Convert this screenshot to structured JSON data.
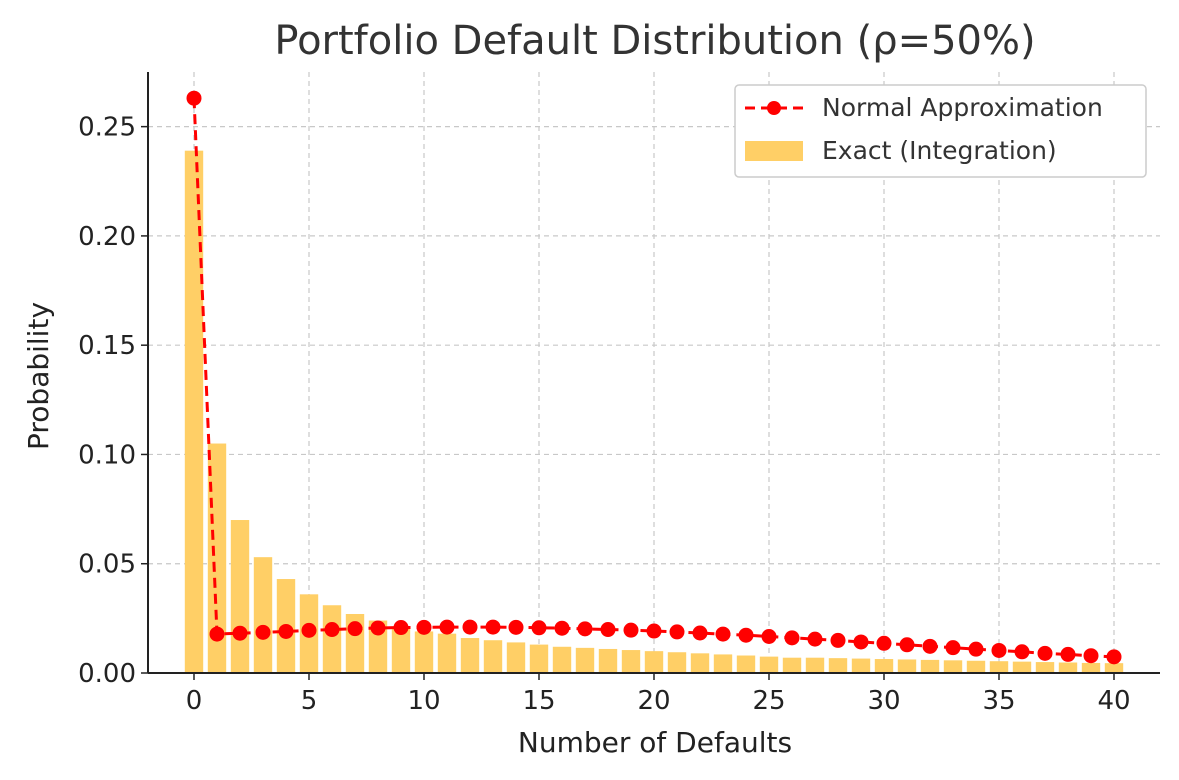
{
  "chart_data": {
    "type": "bar",
    "title": "Portfolio Default Distribution (ρ=50%)",
    "xlabel": "Number of Defaults",
    "ylabel": "Probability",
    "xlim": [
      -2,
      42
    ],
    "ylim": [
      0,
      0.275
    ],
    "x_ticks": [
      0,
      5,
      10,
      15,
      20,
      25,
      30,
      35,
      40
    ],
    "y_ticks": [
      0.0,
      0.05,
      0.1,
      0.15,
      0.2,
      0.25
    ],
    "y_tick_labels": [
      "0.00",
      "0.05",
      "0.10",
      "0.15",
      "0.20",
      "0.25"
    ],
    "grid": true,
    "legend_position": "top-right",
    "x": [
      0,
      1,
      2,
      3,
      4,
      5,
      6,
      7,
      8,
      9,
      10,
      11,
      12,
      13,
      14,
      15,
      16,
      17,
      18,
      19,
      20,
      21,
      22,
      23,
      24,
      25,
      26,
      27,
      28,
      29,
      30,
      31,
      32,
      33,
      34,
      35,
      36,
      37,
      38,
      39,
      40
    ],
    "series": [
      {
        "name": "Exact (Integration)",
        "kind": "bar",
        "color": "#FFCF66",
        "values": [
          0.239,
          0.105,
          0.07,
          0.053,
          0.043,
          0.036,
          0.031,
          0.027,
          0.024,
          0.021,
          0.019,
          0.018,
          0.016,
          0.015,
          0.014,
          0.013,
          0.012,
          0.0115,
          0.011,
          0.0105,
          0.01,
          0.0095,
          0.009,
          0.0085,
          0.008,
          0.0075,
          0.007,
          0.007,
          0.0068,
          0.0066,
          0.0064,
          0.0062,
          0.006,
          0.0058,
          0.0056,
          0.0054,
          0.0052,
          0.005,
          0.0048,
          0.0046,
          0.0045
        ]
      },
      {
        "name": "Normal Approximation",
        "kind": "line",
        "color": "#FF0000",
        "values": [
          0.263,
          0.0178,
          0.0182,
          0.0186,
          0.019,
          0.0195,
          0.0199,
          0.0203,
          0.0206,
          0.0208,
          0.0209,
          0.021,
          0.021,
          0.021,
          0.0209,
          0.0207,
          0.0205,
          0.0202,
          0.0199,
          0.0196,
          0.0192,
          0.0188,
          0.0183,
          0.0178,
          0.0173,
          0.0167,
          0.0161,
          0.0155,
          0.0149,
          0.0142,
          0.0136,
          0.0129,
          0.0122,
          0.0116,
          0.0109,
          0.0103,
          0.0097,
          0.009,
          0.0085,
          0.0079,
          0.0074
        ]
      }
    ]
  }
}
